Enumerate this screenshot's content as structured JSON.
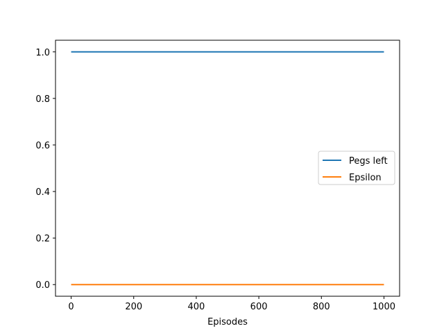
{
  "chart_data": {
    "type": "line",
    "title": "",
    "xlabel": "Episodes",
    "ylabel": "",
    "xlim": [
      -50,
      1050
    ],
    "ylim": [
      -0.05,
      1.05
    ],
    "xticks": [
      0,
      200,
      400,
      600,
      800,
      1000
    ],
    "xtick_labels": [
      "0",
      "200",
      "400",
      "600",
      "800",
      "1000"
    ],
    "yticks": [
      0.0,
      0.2,
      0.4,
      0.6,
      0.8,
      1.0
    ],
    "ytick_labels": [
      "0.0",
      "0.2",
      "0.4",
      "0.6",
      "0.8",
      "1.0"
    ],
    "grid": false,
    "legend_position": "center-right",
    "series": [
      {
        "name": "Pegs left",
        "color": "#1f77b4",
        "x": [
          0,
          1000
        ],
        "y": [
          1.0,
          1.0
        ]
      },
      {
        "name": "Epsilon",
        "color": "#ff7f0e",
        "x": [
          0,
          1000
        ],
        "y": [
          0.0,
          0.0
        ]
      }
    ]
  }
}
